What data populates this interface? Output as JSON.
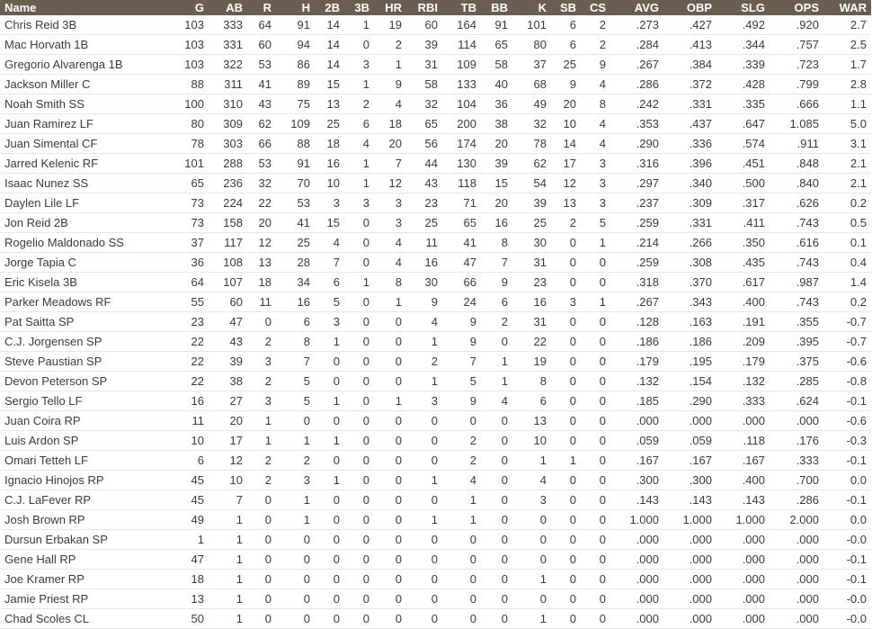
{
  "table": {
    "columns": [
      "Name",
      "G",
      "AB",
      "R",
      "H",
      "2B",
      "3B",
      "HR",
      "RBI",
      "TB",
      "BB",
      "K",
      "SB",
      "CS",
      "AVG",
      "OBP",
      "SLG",
      "OPS",
      "WAR"
    ],
    "rows": [
      [
        "Chris Reid 3B",
        "103",
        "333",
        "64",
        "91",
        "14",
        "1",
        "19",
        "60",
        "164",
        "91",
        "101",
        "6",
        "2",
        ".273",
        ".427",
        ".492",
        ".920",
        "2.7"
      ],
      [
        "Mac Horvath 1B",
        "103",
        "331",
        "60",
        "94",
        "14",
        "0",
        "2",
        "39",
        "114",
        "65",
        "80",
        "6",
        "2",
        ".284",
        ".413",
        ".344",
        ".757",
        "2.5"
      ],
      [
        "Gregorio Alvarenga 1B",
        "103",
        "322",
        "53",
        "86",
        "14",
        "3",
        "1",
        "31",
        "109",
        "58",
        "37",
        "25",
        "9",
        ".267",
        ".384",
        ".339",
        ".723",
        "1.7"
      ],
      [
        "Jackson Miller C",
        "88",
        "311",
        "41",
        "89",
        "15",
        "1",
        "9",
        "58",
        "133",
        "40",
        "68",
        "9",
        "4",
        ".286",
        ".372",
        ".428",
        ".799",
        "2.8"
      ],
      [
        "Noah Smith SS",
        "100",
        "310",
        "43",
        "75",
        "13",
        "2",
        "4",
        "32",
        "104",
        "36",
        "49",
        "20",
        "8",
        ".242",
        ".331",
        ".335",
        ".666",
        "1.1"
      ],
      [
        "Juan Ramirez LF",
        "80",
        "309",
        "62",
        "109",
        "25",
        "6",
        "18",
        "65",
        "200",
        "38",
        "32",
        "10",
        "4",
        ".353",
        ".437",
        ".647",
        "1.085",
        "5.0"
      ],
      [
        "Juan Simental CF",
        "78",
        "303",
        "66",
        "88",
        "18",
        "4",
        "20",
        "56",
        "174",
        "20",
        "78",
        "14",
        "4",
        ".290",
        ".336",
        ".574",
        ".911",
        "3.1"
      ],
      [
        "Jarred Kelenic RF",
        "101",
        "288",
        "53",
        "91",
        "16",
        "1",
        "7",
        "44",
        "130",
        "39",
        "62",
        "17",
        "3",
        ".316",
        ".396",
        ".451",
        ".848",
        "2.1"
      ],
      [
        "Isaac Nunez SS",
        "65",
        "236",
        "32",
        "70",
        "10",
        "1",
        "12",
        "43",
        "118",
        "15",
        "54",
        "12",
        "3",
        ".297",
        ".340",
        ".500",
        ".840",
        "2.1"
      ],
      [
        "Daylen Lile LF",
        "73",
        "224",
        "22",
        "53",
        "3",
        "3",
        "3",
        "23",
        "71",
        "20",
        "39",
        "13",
        "3",
        ".237",
        ".309",
        ".317",
        ".626",
        "0.2"
      ],
      [
        "Jon Reid 2B",
        "73",
        "158",
        "20",
        "41",
        "15",
        "0",
        "3",
        "25",
        "65",
        "16",
        "25",
        "2",
        "5",
        ".259",
        ".331",
        ".411",
        ".743",
        "0.5"
      ],
      [
        "Rogelio Maldonado SS",
        "37",
        "117",
        "12",
        "25",
        "4",
        "0",
        "4",
        "11",
        "41",
        "8",
        "30",
        "0",
        "1",
        ".214",
        ".266",
        ".350",
        ".616",
        "0.1"
      ],
      [
        "Jorge Tapia C",
        "36",
        "108",
        "13",
        "28",
        "7",
        "0",
        "4",
        "16",
        "47",
        "7",
        "31",
        "0",
        "0",
        ".259",
        ".308",
        ".435",
        ".743",
        "0.4"
      ],
      [
        "Eric Kisela 3B",
        "64",
        "107",
        "18",
        "34",
        "6",
        "1",
        "8",
        "30",
        "66",
        "9",
        "23",
        "0",
        "0",
        ".318",
        ".370",
        ".617",
        ".987",
        "1.4"
      ],
      [
        "Parker Meadows RF",
        "55",
        "60",
        "11",
        "16",
        "5",
        "0",
        "1",
        "9",
        "24",
        "6",
        "16",
        "3",
        "1",
        ".267",
        ".343",
        ".400",
        ".743",
        "0.2"
      ],
      [
        "Pat Saitta SP",
        "23",
        "47",
        "0",
        "6",
        "3",
        "0",
        "0",
        "4",
        "9",
        "2",
        "31",
        "0",
        "0",
        ".128",
        ".163",
        ".191",
        ".355",
        "-0.7"
      ],
      [
        "C.J. Jorgensen SP",
        "22",
        "43",
        "2",
        "8",
        "1",
        "0",
        "0",
        "1",
        "9",
        "0",
        "22",
        "0",
        "0",
        ".186",
        ".186",
        ".209",
        ".395",
        "-0.7"
      ],
      [
        "Steve Paustian SP",
        "22",
        "39",
        "3",
        "7",
        "0",
        "0",
        "0",
        "2",
        "7",
        "1",
        "19",
        "0",
        "0",
        ".179",
        ".195",
        ".179",
        ".375",
        "-0.6"
      ],
      [
        "Devon Peterson SP",
        "22",
        "38",
        "2",
        "5",
        "0",
        "0",
        "0",
        "1",
        "5",
        "1",
        "8",
        "0",
        "0",
        ".132",
        ".154",
        ".132",
        ".285",
        "-0.8"
      ],
      [
        "Sergio Tello LF",
        "16",
        "27",
        "3",
        "5",
        "1",
        "0",
        "1",
        "3",
        "9",
        "4",
        "6",
        "0",
        "0",
        ".185",
        ".290",
        ".333",
        ".624",
        "-0.1"
      ],
      [
        "Juan Coira RP",
        "11",
        "20",
        "1",
        "0",
        "0",
        "0",
        "0",
        "0",
        "0",
        "0",
        "13",
        "0",
        "0",
        ".000",
        ".000",
        ".000",
        ".000",
        "-0.6"
      ],
      [
        "Luis Ardon SP",
        "10",
        "17",
        "1",
        "1",
        "1",
        "0",
        "0",
        "0",
        "2",
        "0",
        "10",
        "0",
        "0",
        ".059",
        ".059",
        ".118",
        ".176",
        "-0.3"
      ],
      [
        "Omari Tetteh LF",
        "6",
        "12",
        "2",
        "2",
        "0",
        "0",
        "0",
        "0",
        "2",
        "0",
        "1",
        "1",
        "0",
        ".167",
        ".167",
        ".167",
        ".333",
        "-0.1"
      ],
      [
        "Ignacio Hinojos RP",
        "45",
        "10",
        "2",
        "3",
        "1",
        "0",
        "0",
        "1",
        "4",
        "0",
        "4",
        "0",
        "0",
        ".300",
        ".300",
        ".400",
        ".700",
        "0.0"
      ],
      [
        "C.J. LaFever RP",
        "45",
        "7",
        "0",
        "1",
        "0",
        "0",
        "0",
        "0",
        "1",
        "0",
        "3",
        "0",
        "0",
        ".143",
        ".143",
        ".143",
        ".286",
        "-0.1"
      ],
      [
        "Josh Brown RP",
        "49",
        "1",
        "0",
        "1",
        "0",
        "0",
        "0",
        "1",
        "1",
        "0",
        "0",
        "0",
        "0",
        "1.000",
        "1.000",
        "1.000",
        "2.000",
        "0.0"
      ],
      [
        "Dursun Erbakan SP",
        "1",
        "1",
        "0",
        "0",
        "0",
        "0",
        "0",
        "0",
        "0",
        "0",
        "0",
        "0",
        "0",
        ".000",
        ".000",
        ".000",
        ".000",
        "-0.0"
      ],
      [
        "Gene Hall RP",
        "47",
        "1",
        "0",
        "0",
        "0",
        "0",
        "0",
        "0",
        "0",
        "0",
        "0",
        "0",
        "0",
        ".000",
        ".000",
        ".000",
        ".000",
        "-0.1"
      ],
      [
        "Joe Kramer RP",
        "18",
        "1",
        "0",
        "0",
        "0",
        "0",
        "0",
        "0",
        "0",
        "0",
        "1",
        "0",
        "0",
        ".000",
        ".000",
        ".000",
        ".000",
        "-0.1"
      ],
      [
        "Jamie Priest RP",
        "13",
        "1",
        "0",
        "0",
        "0",
        "0",
        "0",
        "0",
        "0",
        "0",
        "0",
        "0",
        "0",
        ".000",
        ".000",
        ".000",
        ".000",
        "-0.0"
      ],
      [
        "Chad Scoles CL",
        "50",
        "1",
        "0",
        "0",
        "0",
        "0",
        "0",
        "0",
        "0",
        "0",
        "1",
        "0",
        "0",
        ".000",
        ".000",
        ".000",
        ".000",
        "-0.0"
      ]
    ]
  },
  "colors": {
    "header_bg": "#6b5e51",
    "header_text": "#ffffff",
    "cell_text": "#3a3a3a"
  }
}
